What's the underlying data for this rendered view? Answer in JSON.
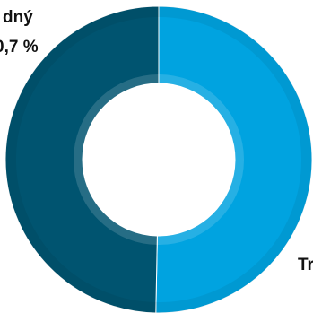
{
  "chart_data": {
    "type": "donut",
    "series": [
      {
        "color": "#00a3e0",
        "values": [
          50.3
        ]
      },
      {
        "color": "#005470",
        "values": [
          49.7
        ]
      }
    ],
    "annotations": [
      "dný",
      "0,7 %",
      "Tr"
    ]
  }
}
